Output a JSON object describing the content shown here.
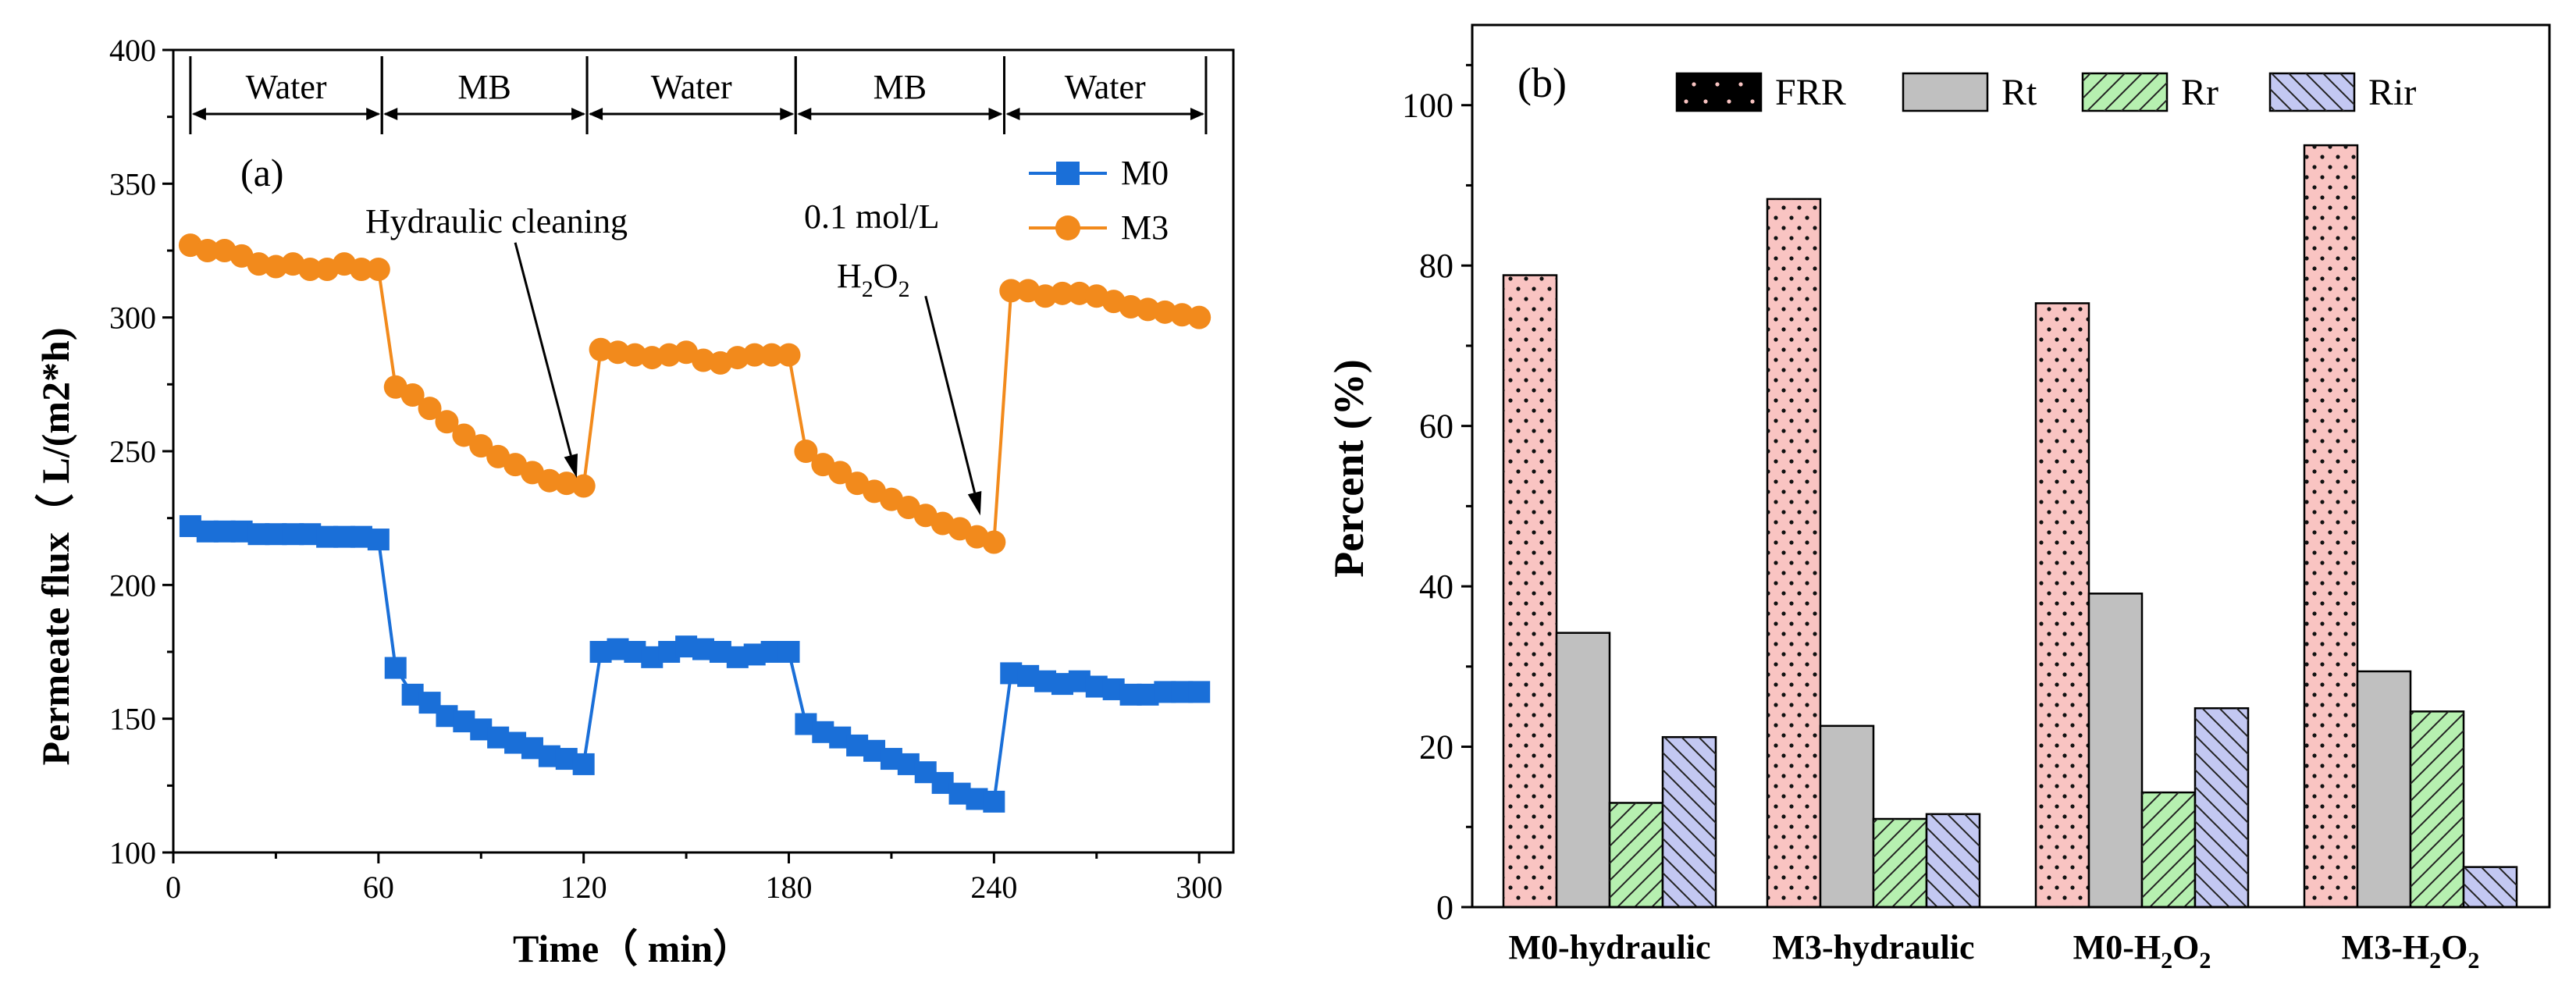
{
  "chart_data": [
    {
      "type": "line",
      "panel_label": "(a)",
      "xlabel": "Time（ min）",
      "ylabel": "Permeate flux（ L/(m2*h)",
      "xlim": [
        0,
        310
      ],
      "ylim": [
        100,
        400
      ],
      "xticks": [
        0,
        60,
        120,
        180,
        240,
        300
      ],
      "yticks": [
        100,
        150,
        200,
        250,
        300,
        350,
        400
      ],
      "stages": [
        {
          "label": "Water",
          "start": 5,
          "end": 61
        },
        {
          "label": "MB",
          "start": 61,
          "end": 121
        },
        {
          "label": "Water",
          "start": 121,
          "end": 182
        },
        {
          "label": "MB",
          "start": 182,
          "end": 243
        },
        {
          "label": "Water",
          "start": 243,
          "end": 302
        }
      ],
      "annotations": [
        {
          "text": "Hydraulic cleaning",
          "from": [
            100,
            328
          ],
          "to": [
            118,
            240
          ]
        },
        {
          "text_line1": "0.1 mol/L",
          "text_line2_main": "H",
          "text_line2_sub1": "2",
          "text_line2_mid": "O",
          "text_line2_sub2": "2",
          "from": [
            220,
            308
          ],
          "to": [
            236,
            226
          ]
        }
      ],
      "legend_position": "top-right",
      "series": [
        {
          "name": "M0",
          "color": "#1a6fd8",
          "marker": "square",
          "x": [
            5,
            10,
            15,
            20,
            25,
            30,
            35,
            40,
            45,
            50,
            55,
            60,
            65,
            70,
            75,
            80,
            85,
            90,
            95,
            100,
            105,
            110,
            115,
            120,
            125,
            130,
            135,
            140,
            145,
            150,
            155,
            160,
            165,
            170,
            175,
            180,
            185,
            190,
            195,
            200,
            205,
            210,
            215,
            220,
            225,
            230,
            235,
            240,
            245,
            250,
            255,
            260,
            265,
            270,
            275,
            280,
            285,
            290,
            295,
            300
          ],
          "y": [
            222,
            220,
            220,
            220,
            219,
            219,
            219,
            219,
            218,
            218,
            218,
            217,
            169,
            159,
            156,
            151,
            149,
            146,
            143,
            141,
            139,
            136,
            135,
            133,
            175,
            176,
            175,
            173,
            175,
            177,
            176,
            175,
            173,
            174,
            175,
            175,
            148,
            145,
            143,
            140,
            138,
            135,
            133,
            130,
            126,
            122,
            120,
            119,
            167,
            166,
            164,
            163,
            164,
            162,
            161,
            159,
            159,
            160,
            160,
            160
          ]
        },
        {
          "name": "M3",
          "color": "#f28a1c",
          "marker": "circle",
          "x": [
            5,
            10,
            15,
            20,
            25,
            30,
            35,
            40,
            45,
            50,
            55,
            60,
            65,
            70,
            75,
            80,
            85,
            90,
            95,
            100,
            105,
            110,
            115,
            120,
            125,
            130,
            135,
            140,
            145,
            150,
            155,
            160,
            165,
            170,
            175,
            180,
            185,
            190,
            195,
            200,
            205,
            210,
            215,
            220,
            225,
            230,
            235,
            240,
            245,
            250,
            255,
            260,
            265,
            270,
            275,
            280,
            285,
            290,
            295,
            300
          ],
          "y": [
            327,
            325,
            325,
            323,
            320,
            319,
            320,
            318,
            318,
            320,
            318,
            318,
            274,
            271,
            266,
            261,
            256,
            252,
            248,
            245,
            242,
            239,
            238,
            237,
            288,
            287,
            286,
            285,
            286,
            287,
            284,
            283,
            285,
            286,
            286,
            286,
            250,
            245,
            242,
            238,
            235,
            232,
            229,
            226,
            223,
            221,
            218,
            216,
            310,
            310,
            308,
            309,
            309,
            308,
            306,
            304,
            303,
            302,
            301,
            300
          ]
        }
      ]
    },
    {
      "type": "bar",
      "panel_label": "(b)",
      "xlabel": "",
      "ylabel": "Percent (%)",
      "ylim": [
        0,
        110
      ],
      "yticks": [
        0,
        20,
        40,
        60,
        80,
        100
      ],
      "categories": [
        {
          "main": "M0-hydraulic",
          "sub_parts": []
        },
        {
          "main": "M3-hydraulic",
          "sub_parts": []
        },
        {
          "main": "M0-H",
          "sub_parts": [
            "2",
            "O",
            "2"
          ]
        },
        {
          "main": "M3-H",
          "sub_parts": [
            "2",
            "O",
            "2"
          ]
        }
      ],
      "legend_position": "top",
      "series": [
        {
          "name": "FRR",
          "color": "#f9c4c2",
          "pattern": "dots",
          "values": [
            78.8,
            88.3,
            75.3,
            95.0
          ]
        },
        {
          "name": "Rt",
          "color": "#c0c0c0",
          "pattern": "none",
          "values": [
            34.2,
            22.6,
            39.1,
            29.4
          ]
        },
        {
          "name": "Rr",
          "color": "#b6f0b0",
          "pattern": "diag-right",
          "values": [
            13.0,
            11.0,
            14.3,
            24.4
          ]
        },
        {
          "name": "Rir",
          "color": "#c3c8f2",
          "pattern": "diag-left",
          "values": [
            21.2,
            11.6,
            24.8,
            5.0
          ]
        }
      ]
    }
  ]
}
